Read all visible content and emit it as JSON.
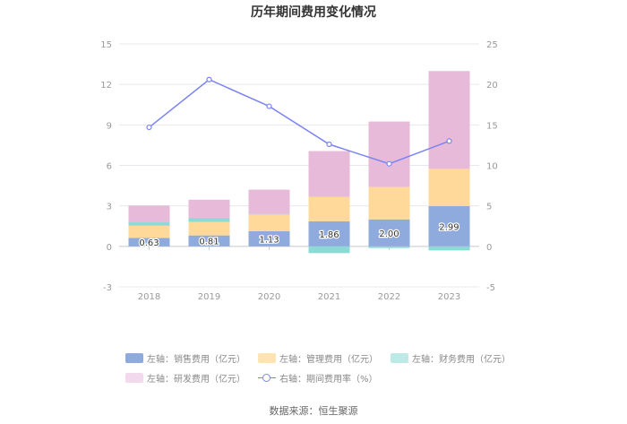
{
  "chart_data": {
    "type": "bar",
    "title": "历年期间费用变化情况",
    "categories": [
      "2018",
      "2019",
      "2020",
      "2021",
      "2022",
      "2023"
    ],
    "left_axis": {
      "ylim": [
        -3,
        15
      ],
      "ticks": [
        -3,
        0,
        3,
        6,
        9,
        12,
        15
      ]
    },
    "right_axis": {
      "ylim": [
        -5,
        25
      ],
      "ticks": [
        -5,
        0,
        5,
        10,
        15,
        20,
        25
      ]
    },
    "series": [
      {
        "name": "左轴：销售费用（亿元）",
        "axis": "left",
        "type": "stacked-bar",
        "color": "#8FAADC",
        "values": [
          0.63,
          0.81,
          1.13,
          1.86,
          2.0,
          2.99
        ],
        "labels": [
          "0.63",
          "0.81",
          "1.13",
          "1.86",
          "2.00",
          "2.99"
        ]
      },
      {
        "name": "左轴：管理费用（亿元）",
        "axis": "left",
        "type": "stacked-bar",
        "color": "#FFD99A",
        "values": [
          0.9,
          1.0,
          1.25,
          1.8,
          2.4,
          2.75
        ]
      },
      {
        "name": "左轴：财务费用（亿元）",
        "axis": "left",
        "type": "stacked-bar",
        "color": "#8DD9D6",
        "values": [
          0.25,
          0.3,
          0.02,
          -0.5,
          -0.12,
          -0.3
        ]
      },
      {
        "name": "左轴：研发费用（亿元）",
        "axis": "left",
        "type": "stacked-bar",
        "color": "#E8BADA",
        "values": [
          1.25,
          1.35,
          1.8,
          3.4,
          4.85,
          7.25
        ]
      },
      {
        "name": "右轴：期间费用率（%）",
        "axis": "right",
        "type": "line",
        "color": "#7B84F2",
        "values": [
          14.7,
          20.6,
          17.3,
          12.6,
          10.2,
          13.0
        ]
      }
    ],
    "grid": true,
    "legend_position": "bottom"
  },
  "source_label": "数据来源：恒生聚源"
}
